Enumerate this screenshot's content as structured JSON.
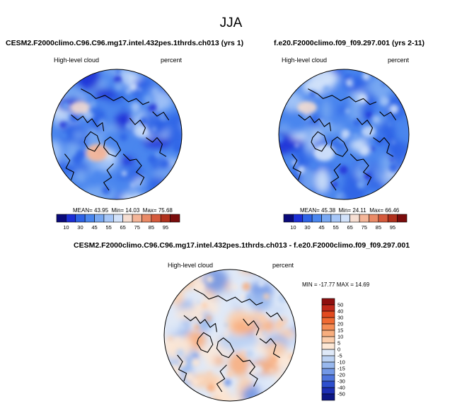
{
  "figure": {
    "season": "JJA"
  },
  "panels": [
    {
      "title": "CESM2.F2000climo.C96.C96.mg17.intel.432pes.1thrds.ch013 (yrs 1)",
      "left_label": "High-level cloud",
      "right_label": "percent",
      "stats": {
        "mean_label": "MEAN=",
        "mean": "43.95",
        "min_label": "Min=",
        "min": "14.03",
        "max_label": "Max=",
        "max": "75.68"
      }
    },
    {
      "title": "f.e20.F2000climo.f09_f09.297.001 (yrs 2-11)",
      "left_label": "High-level cloud",
      "right_label": "percent",
      "stats": {
        "mean_label": "MEAN=",
        "mean": "45.38",
        "min_label": "Min=",
        "min": "24.11",
        "max_label": "Max=",
        "max": "66.46"
      }
    },
    {
      "title": "CESM2.F2000climo.C96.C96.mg17.intel.432pes.1thrds.ch013 - f.e20.F2000climo.f09_f09.297.001",
      "left_label": "High-level cloud",
      "right_label": "percent",
      "minmax": "MIN = -17.77 MAX =  14.69"
    }
  ],
  "chart_data": [
    {
      "type": "heatmap",
      "projection": "north-polar-stereographic",
      "variable": "High-level cloud",
      "units": "percent",
      "stats": {
        "mean": 43.95,
        "min": 14.03,
        "max": 75.68
      },
      "colorbar": {
        "orientation": "horizontal",
        "levels": [
          10,
          30,
          45,
          55,
          65,
          75,
          85,
          95
        ],
        "colors": [
          "#0a0a7a",
          "#1c2fd6",
          "#2e63e6",
          "#4a86ee",
          "#78a8f2",
          "#a6c6f7",
          "#d2e2fa",
          "#f6ded2",
          "#f4b598",
          "#ea8a66",
          "#d55a3c",
          "#b0301c",
          "#7a0c0c"
        ]
      }
    },
    {
      "type": "heatmap",
      "projection": "north-polar-stereographic",
      "variable": "High-level cloud",
      "units": "percent",
      "stats": {
        "mean": 45.38,
        "min": 24.11,
        "max": 66.46
      },
      "colorbar": {
        "orientation": "horizontal",
        "levels": [
          10,
          30,
          45,
          55,
          65,
          75,
          85,
          95
        ],
        "colors": [
          "#0a0a7a",
          "#1c2fd6",
          "#2e63e6",
          "#4a86ee",
          "#78a8f2",
          "#a6c6f7",
          "#d2e2fa",
          "#f6ded2",
          "#f4b598",
          "#ea8a66",
          "#d55a3c",
          "#b0301c",
          "#7a0c0c"
        ]
      }
    },
    {
      "type": "heatmap",
      "projection": "north-polar-stereographic",
      "variable": "High-level cloud",
      "units": "percent",
      "stats": {
        "min": -17.77,
        "max": 14.69
      },
      "colorbar": {
        "orientation": "vertical",
        "levels": [
          50,
          40,
          30,
          20,
          15,
          10,
          5,
          0,
          -5,
          -10,
          -15,
          -20,
          -30,
          -40,
          -50
        ],
        "colors": [
          "#8e0f0f",
          "#c0281a",
          "#e24a1f",
          "#f06a32",
          "#f58d55",
          "#f8ae7e",
          "#fbcdab",
          "#fde8d6",
          "#dfe9f8",
          "#bcd2f3",
          "#98b8ee",
          "#7398e6",
          "#4f75dc",
          "#2e4fce",
          "#1d2fb4",
          "#0d1785"
        ]
      }
    }
  ]
}
